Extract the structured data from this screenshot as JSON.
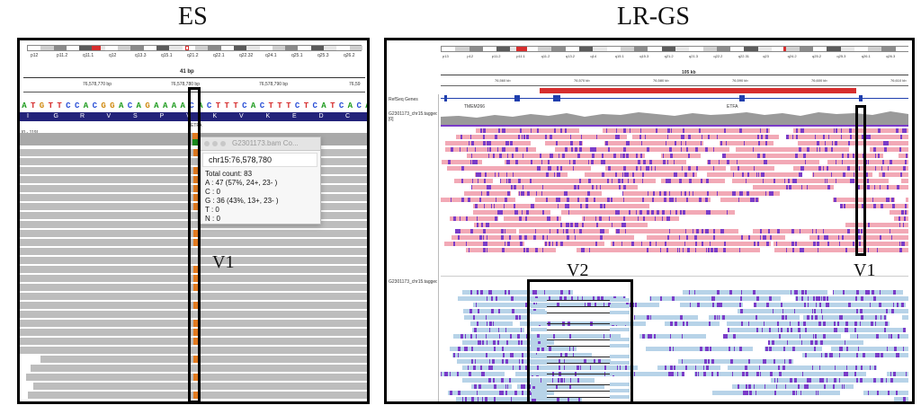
{
  "titles": {
    "es": "ES",
    "lrgs": "LR-GS"
  },
  "es_panel": {
    "bands": [
      "p12",
      "p11.2",
      "q11.1",
      "q12",
      "q13.3",
      "q15.1",
      "q21.2",
      "q22.1",
      "q22.32",
      "q24.1",
      "q25.1",
      "q25.3",
      "q26.2"
    ],
    "ruler": {
      "span": "41 bp",
      "ticks": [
        "76,578,770 bp",
        "76,578,780 bp",
        "76,578,790 bp",
        "76,59"
      ]
    },
    "sequence": [
      "A",
      "T",
      "G",
      "T",
      "T",
      "C",
      "C",
      "A",
      "C",
      "G",
      "G",
      "A",
      "C",
      "A",
      "G",
      "A",
      "A",
      "A",
      "A",
      "C",
      "A",
      "C",
      "T",
      "T",
      "T",
      "C",
      "A",
      "C",
      "T",
      "T",
      "T",
      "C",
      "T",
      "C",
      "A",
      "T",
      "C",
      "A",
      "C",
      "A"
    ],
    "amino_acids": [
      "I",
      "G",
      "R",
      "V",
      "S",
      "P",
      "V",
      "K",
      "V",
      "K",
      "E",
      "D",
      "C"
    ],
    "gene_label": "ETFA",
    "coverage_label": "[0 - 119]",
    "popup": {
      "title": "G2301173.bam Co...",
      "position": "chr15:76,578,780",
      "lines": [
        "Total count: 83",
        "A : 47 (57%, 24+, 23- )",
        "C : 0",
        "G : 36 (43%, 13+, 23- )",
        "T : 0",
        "N : 0"
      ]
    },
    "variant_label": "V1"
  },
  "lrgs_panel": {
    "bands": [
      "p13",
      "p12",
      "p11.2",
      "p11.1",
      "q11.2",
      "q13.2",
      "q14",
      "q15.1",
      "q15.3",
      "q21.2",
      "q21.3",
      "q22.2",
      "q22.31",
      "q23",
      "q24.2",
      "q25.2",
      "q25.3",
      "q26.1",
      "q26.3"
    ],
    "ruler": {
      "span": "105 kb",
      "ticks": [
        "76,560 kb",
        "76,570 kb",
        "76,580 kb",
        "76,590 kb",
        "76,600 kb",
        "76,610 kb"
      ]
    },
    "track_names": {
      "genes": "RefSeq Genes",
      "coverage": "G2301173_chr15.tagged.bam Coverage",
      "hap1": "G2301173_chr15.tagged.bam",
      "hap2": "G2301173_chr15.tagged.bam"
    },
    "gene_labels": [
      "TMEM266",
      "ETFA"
    ],
    "v1_label": "V1",
    "v2_label": "V2"
  },
  "colors": {
    "read_pink": "#f2a9b6",
    "read_blue": "#b7d3e8",
    "mismatch_purple": "#7a3cc8",
    "variant_red": "#d62e2e",
    "aa_band": "#23237a"
  }
}
